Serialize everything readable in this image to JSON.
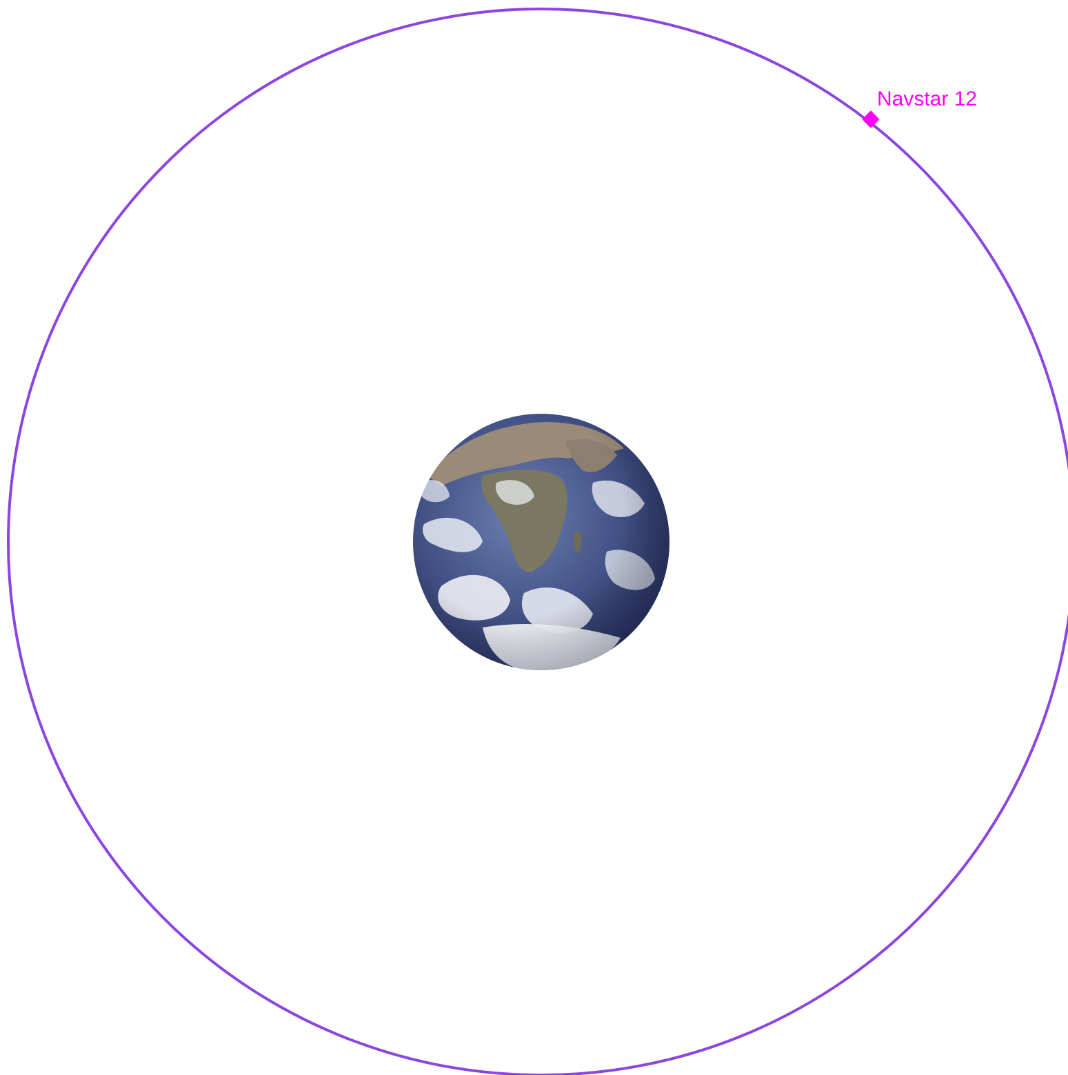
{
  "colors": {
    "background": "#ffffff",
    "orbit": "#8c45df",
    "satellite": "#ff00ff",
    "ocean_deep": "#2b3a6b",
    "ocean": "#4a5a8c",
    "land_desert": "#9a8a78",
    "land": "#7a7860",
    "cloud": "#f2f4f8"
  },
  "earth": {
    "icon": "earth-globe-icon"
  },
  "satellite": {
    "name": "Navstar 12",
    "icon": "diamond-marker-icon"
  }
}
